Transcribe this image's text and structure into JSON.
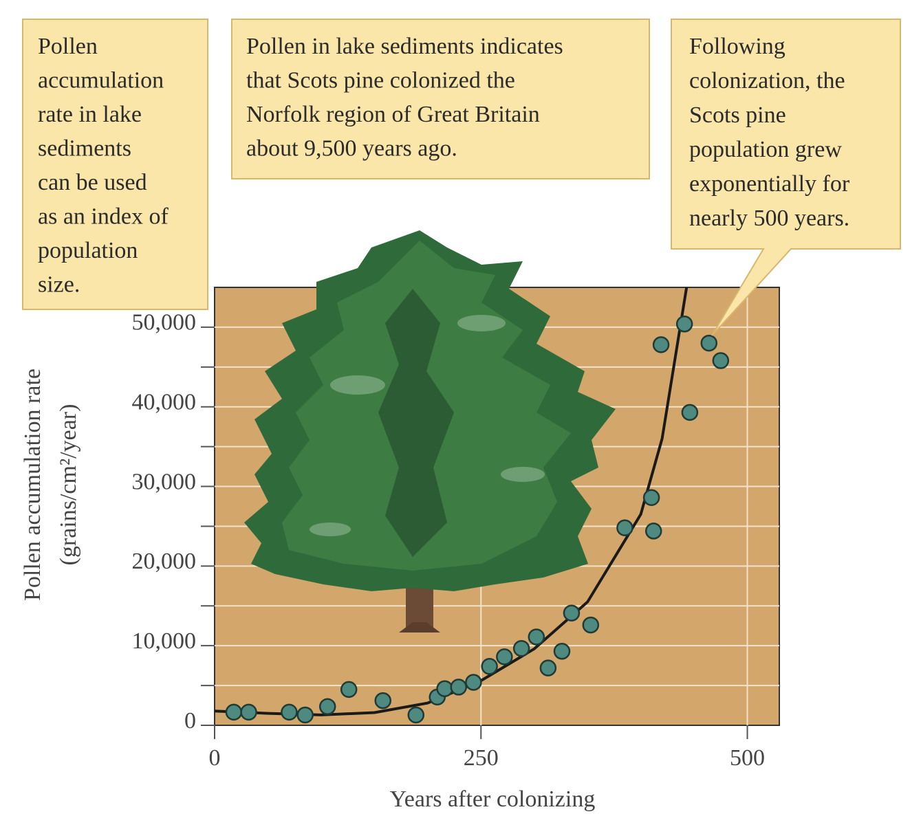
{
  "chart_data": {
    "type": "scatter",
    "annotations": [
      {
        "lines": [
          "Pollen",
          "accumulation",
          "rate in lake",
          "sediments",
          "can be used",
          "as an index of",
          "population",
          "size."
        ]
      },
      {
        "lines": [
          "Pollen in lake sediments indicates",
          "that Scots pine colonized the",
          "Norfolk region of Great Britain",
          "about 9,500 years ago."
        ]
      },
      {
        "lines": [
          "Following",
          "colonization, the",
          "Scots pine",
          "population grew",
          "exponentially for",
          "nearly 500 years."
        ]
      }
    ],
    "x_label": "Years after colonizing",
    "y_label": [
      "Pollen accumulation rate",
      "(grains/cm²/year)"
    ],
    "xlim": [
      0,
      530
    ],
    "ylim": [
      0,
      55000
    ],
    "xticks": [
      0,
      250,
      500
    ],
    "yticks": [
      0,
      {
        "value": 10000,
        "label": "10,000"
      },
      {
        "value": 20000,
        "label": "20,000"
      },
      {
        "value": 30000,
        "label": "30,000"
      },
      {
        "value": 40000,
        "label": "40,000"
      },
      {
        "value": 50000,
        "label": "50,000"
      }
    ],
    "minor_yticks": [
      5000,
      15000,
      25000,
      35000,
      45000
    ],
    "grid": true,
    "background": "#d3a66c",
    "points": {
      "color": "#4f8a80",
      "x": [
        18,
        32,
        70,
        85,
        106,
        126,
        158,
        189,
        209,
        216,
        229,
        243,
        258,
        272,
        288,
        302,
        313,
        326,
        335,
        353,
        385,
        410,
        412,
        419,
        441,
        446,
        464,
        475
      ],
      "values": [
        1650,
        1650,
        1650,
        1300,
        2350,
        4500,
        3100,
        1300,
        3550,
        4600,
        4800,
        5400,
        7400,
        8600,
        9650,
        11100,
        7200,
        9300,
        14100,
        12600,
        24800,
        28600,
        24400,
        47800,
        50400,
        39300,
        48000,
        45800
      ]
    },
    "curve": {
      "color": "#1a1a1a",
      "x": [
        0,
        50,
        100,
        150,
        200,
        250,
        300,
        350,
        400,
        420,
        443
      ],
      "values": [
        1800,
        1500,
        1300,
        1600,
        2800,
        5600,
        9600,
        15500,
        26500,
        36000,
        55000
      ]
    }
  }
}
